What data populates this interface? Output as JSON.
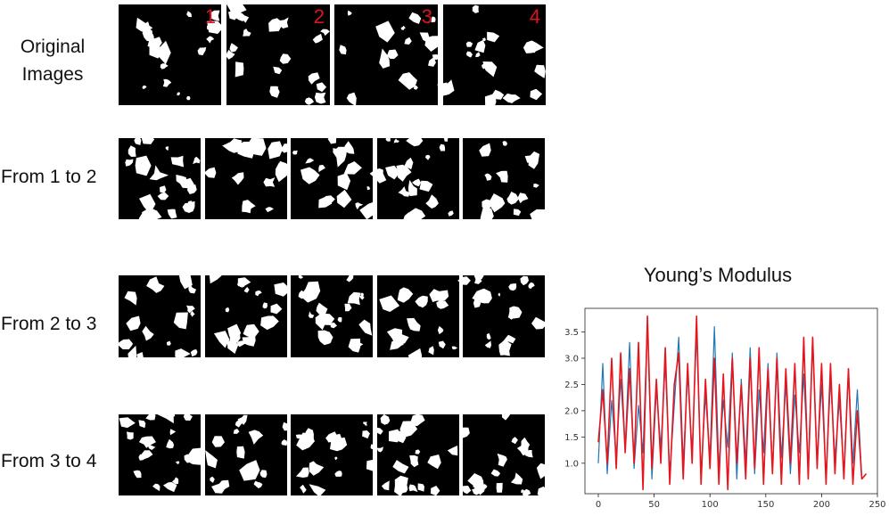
{
  "rows": [
    {
      "label": "Original\nImages",
      "tiles": [
        "1",
        "2",
        "3",
        "4"
      ]
    },
    {
      "label": "From 1 to 2",
      "tiles": [
        "",
        "",
        "",
        "",
        ""
      ]
    },
    {
      "label": "From 2 to 3",
      "tiles": [
        "",
        "",
        "",
        "",
        ""
      ]
    },
    {
      "label": "From 3 to 4",
      "tiles": [
        "",
        "",
        "",
        "",
        ""
      ]
    }
  ],
  "colors": {
    "tile_background": "#000000",
    "tile_particles": "#ffffff",
    "tile_number": "#e0141e"
  },
  "chart_data": {
    "type": "line",
    "title": "Young’s Modulus",
    "xlabel": "",
    "ylabel": "",
    "xlim": [
      -12,
      250
    ],
    "ylim": [
      0.42,
      3.95
    ],
    "xticks": [
      0,
      50,
      100,
      150,
      200,
      250
    ],
    "yticks": [
      1.0,
      1.5,
      2.0,
      2.5,
      3.0,
      3.5
    ],
    "grid": false,
    "series": [
      {
        "color": "#1f77b4",
        "x": [
          0,
          4,
          8,
          12,
          16,
          20,
          24,
          28,
          32,
          36,
          40,
          44,
          48,
          52,
          56,
          60,
          64,
          68,
          72,
          76,
          80,
          84,
          88,
          92,
          96,
          100,
          104,
          108,
          112,
          116,
          120,
          124,
          128,
          132,
          136,
          140,
          144,
          148,
          152,
          156,
          160,
          164,
          168,
          172,
          176,
          180,
          184,
          188,
          192,
          196,
          200,
          204,
          208,
          212,
          216,
          220,
          224,
          228,
          232,
          236,
          240
        ],
        "y": [
          1.0,
          2.9,
          0.8,
          2.2,
          1.1,
          2.6,
          1.3,
          3.3,
          0.9,
          2.1,
          1.2,
          3.7,
          0.7,
          2.4,
          1.3,
          2.9,
          0.8,
          2.1,
          3.4,
          1.0,
          2.7,
          1.2,
          3.5,
          0.8,
          2.3,
          1.1,
          3.6,
          0.9,
          2.2,
          1.3,
          3.1,
          0.7,
          2.6,
          1.0,
          3.2,
          0.8,
          2.4,
          1.2,
          2.9,
          0.9,
          3.1,
          1.1,
          2.5,
          0.8,
          2.3,
          1.2,
          2.7,
          0.9,
          3.4,
          1.0,
          2.5,
          0.7,
          2.6,
          1.1,
          2.2,
          0.8,
          2.8,
          1.0,
          2.4,
          0.7,
          0.8
        ]
      },
      {
        "color": "#e8141c",
        "x": [
          0,
          4,
          8,
          12,
          16,
          20,
          24,
          28,
          32,
          36,
          40,
          44,
          48,
          52,
          56,
          60,
          64,
          68,
          72,
          76,
          80,
          84,
          88,
          92,
          96,
          100,
          104,
          108,
          112,
          116,
          120,
          124,
          128,
          132,
          136,
          140,
          144,
          148,
          152,
          156,
          160,
          164,
          168,
          172,
          176,
          180,
          184,
          188,
          192,
          196,
          200,
          204,
          208,
          212,
          216,
          220,
          224,
          228,
          232,
          236,
          240
        ],
        "y": [
          1.4,
          2.4,
          1.0,
          3.0,
          0.9,
          3.1,
          1.2,
          2.8,
          1.0,
          3.3,
          0.5,
          3.8,
          0.9,
          2.6,
          1.0,
          3.2,
          0.6,
          2.5,
          3.1,
          0.7,
          2.9,
          1.0,
          3.8,
          0.6,
          2.6,
          0.9,
          3.0,
          0.6,
          2.7,
          0.5,
          3.0,
          1.0,
          2.5,
          0.7,
          3.0,
          0.9,
          3.2,
          0.6,
          2.8,
          0.8,
          3.0,
          0.6,
          2.8,
          1.0,
          2.9,
          0.6,
          3.4,
          0.7,
          3.4,
          0.9,
          2.9,
          0.6,
          2.9,
          0.8,
          2.5,
          0.7,
          2.8,
          0.6,
          2.0,
          0.7,
          0.8
        ]
      }
    ]
  }
}
